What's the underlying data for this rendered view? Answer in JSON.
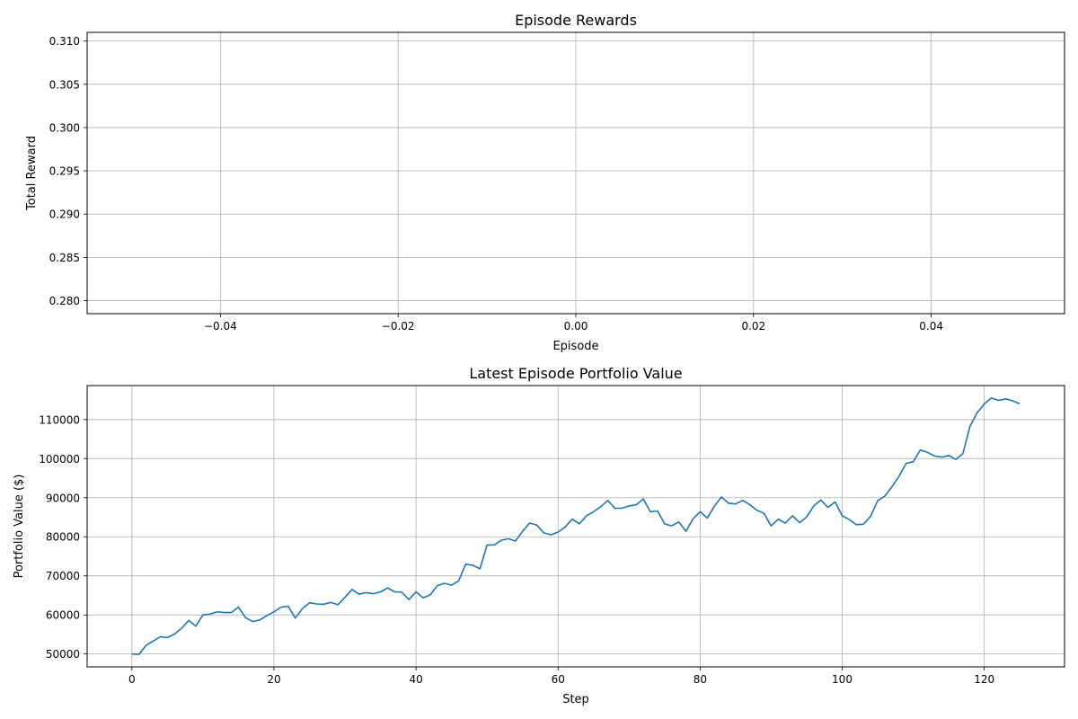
{
  "chart_data": [
    {
      "type": "line",
      "title": "Episode Rewards",
      "xlabel": "Episode",
      "ylabel": "Total Reward",
      "xlim": [
        -0.055,
        0.055
      ],
      "ylim": [
        0.2785,
        0.311
      ],
      "x_ticks": [
        -0.04,
        -0.02,
        0.0,
        0.02,
        0.04
      ],
      "x_tick_labels": [
        "−0.04",
        "−0.02",
        "0.00",
        "0.02",
        "0.04"
      ],
      "y_ticks": [
        0.28,
        0.285,
        0.29,
        0.295,
        0.3,
        0.305,
        0.31
      ],
      "y_tick_labels": [
        "0.280",
        "0.285",
        "0.290",
        "0.295",
        "0.300",
        "0.305",
        "0.310"
      ],
      "grid": true,
      "color": "#1f77b4",
      "x": [],
      "y": []
    },
    {
      "type": "line",
      "title": "Latest Episode Portfolio Value",
      "xlabel": "Step",
      "ylabel": "Portfolio Value ($)",
      "xlim": [
        -6.3,
        131.3
      ],
      "ylim": [
        46700,
        118700
      ],
      "x_ticks": [
        0,
        20,
        40,
        60,
        80,
        100,
        120
      ],
      "x_tick_labels": [
        "0",
        "20",
        "40",
        "60",
        "80",
        "100",
        "120"
      ],
      "y_ticks": [
        50000,
        60000,
        70000,
        80000,
        90000,
        100000,
        110000
      ],
      "y_tick_labels": [
        "50000",
        "60000",
        "70000",
        "80000",
        "90000",
        "100000",
        "110000"
      ],
      "grid": true,
      "color": "#1f77b4",
      "x": [
        0,
        1,
        2,
        3,
        4,
        5,
        6,
        7,
        8,
        9,
        10,
        11,
        12,
        13,
        14,
        15,
        16,
        17,
        18,
        19,
        20,
        21,
        22,
        23,
        24,
        25,
        26,
        27,
        28,
        29,
        30,
        31,
        32,
        33,
        34,
        35,
        36,
        37,
        38,
        39,
        40,
        41,
        42,
        43,
        44,
        45,
        46,
        47,
        48,
        49,
        50,
        51,
        52,
        53,
        54,
        55,
        56,
        57,
        58,
        59,
        60,
        61,
        62,
        63,
        64,
        65,
        66,
        67,
        68,
        69,
        70,
        71,
        72,
        73,
        74,
        75,
        76,
        77,
        78,
        79,
        80,
        81,
        82,
        83,
        84,
        85,
        86,
        87,
        88,
        89,
        90,
        91,
        92,
        93,
        94,
        95,
        96,
        97,
        98,
        99,
        100,
        101,
        102,
        103,
        104,
        105,
        106,
        107,
        108,
        109,
        110,
        111,
        112,
        113,
        114,
        115,
        116,
        117,
        118,
        119,
        120,
        121,
        122,
        123,
        124,
        125
      ],
      "y": [
        50000,
        49900,
        52200,
        53300,
        54400,
        54200,
        55100,
        56600,
        58600,
        57100,
        60000,
        60200,
        60800,
        60600,
        60600,
        62000,
        59300,
        58300,
        58700,
        59800,
        60800,
        62000,
        62200,
        59200,
        61600,
        63100,
        62800,
        62700,
        63200,
        62600,
        64500,
        66500,
        65300,
        65700,
        65400,
        65900,
        66900,
        65900,
        65800,
        63900,
        65900,
        64400,
        65100,
        67500,
        68100,
        67600,
        68700,
        73000,
        72700,
        71800,
        77900,
        77900,
        79100,
        79500,
        78900,
        81400,
        83500,
        83000,
        81000,
        80500,
        81200,
        82500,
        84500,
        83300,
        85400,
        86400,
        87700,
        89300,
        87300,
        87300,
        87900,
        88200,
        89700,
        86400,
        86600,
        83300,
        82800,
        83800,
        81400,
        84600,
        86400,
        84800,
        87800,
        90200,
        88600,
        88400,
        89300,
        88200,
        86800,
        86000,
        82800,
        84500,
        83500,
        85400,
        83600,
        85100,
        87900,
        89400,
        87500,
        88900,
        85400,
        84400,
        83100,
        83200,
        85200,
        89200,
        90400,
        92800,
        95500,
        98800,
        99200,
        102200,
        101600,
        100700,
        100400,
        100800,
        99800,
        101300,
        108300,
        111700,
        114000,
        115500,
        114900,
        115300,
        114800,
        114000
      ]
    }
  ]
}
